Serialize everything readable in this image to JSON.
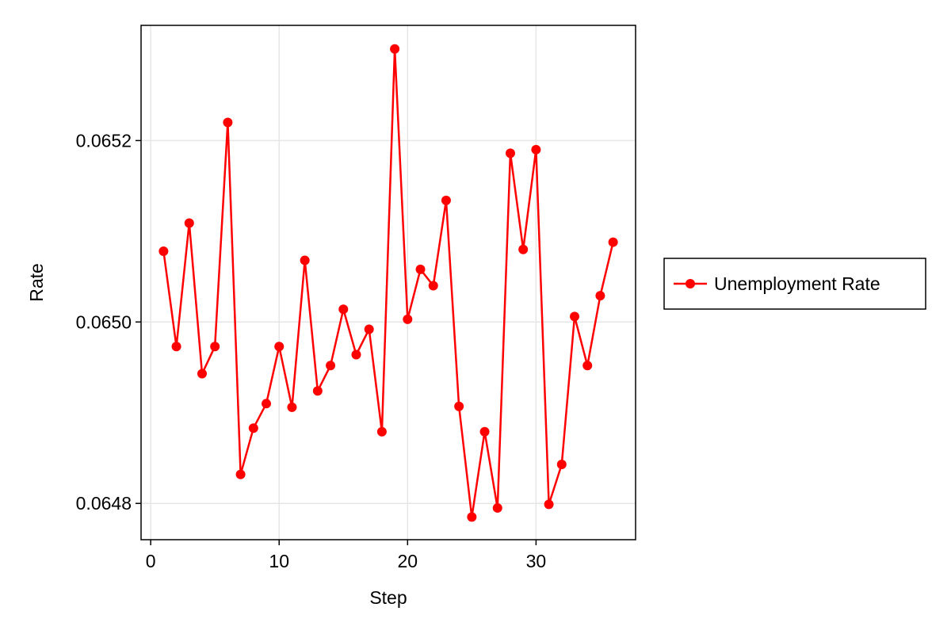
{
  "chart_data": {
    "type": "line",
    "title": "",
    "xlabel": "Step",
    "ylabel": "Rate",
    "xlim": [
      -0.75,
      37.75
    ],
    "ylim": [
      0.06476,
      0.065327
    ],
    "xticks": [
      0,
      10,
      20,
      30
    ],
    "xtick_labels": [
      "0",
      "10",
      "20",
      "30"
    ],
    "yticks": [
      0.0648,
      0.065,
      0.0652
    ],
    "ytick_labels": [
      "0.0648",
      "0.0650",
      "0.0652"
    ],
    "grid": true,
    "legend_position": "right",
    "colors": {
      "series": "#ff0000"
    },
    "series": [
      {
        "name": "Unemployment Rate",
        "marker": "circle",
        "x": [
          1,
          2,
          3,
          4,
          5,
          6,
          7,
          8,
          9,
          10,
          11,
          12,
          13,
          14,
          15,
          16,
          17,
          18,
          19,
          20,
          21,
          22,
          23,
          24,
          25,
          26,
          27,
          28,
          29,
          30,
          31,
          32,
          33,
          34,
          35,
          36
        ],
        "y": [
          0.065078,
          0.064973,
          0.065109,
          0.064943,
          0.064973,
          0.06522,
          0.064832,
          0.064883,
          0.06491,
          0.064973,
          0.064906,
          0.065068,
          0.064924,
          0.064952,
          0.065014,
          0.064964,
          0.064992,
          0.064879,
          0.065301,
          0.065003,
          0.065058,
          0.06504,
          0.065134,
          0.064907,
          0.064785,
          0.064879,
          0.064795,
          0.065186,
          0.06508,
          0.06519,
          0.064799,
          0.064843,
          0.065006,
          0.064952,
          0.065029,
          0.065088
        ]
      }
    ]
  }
}
